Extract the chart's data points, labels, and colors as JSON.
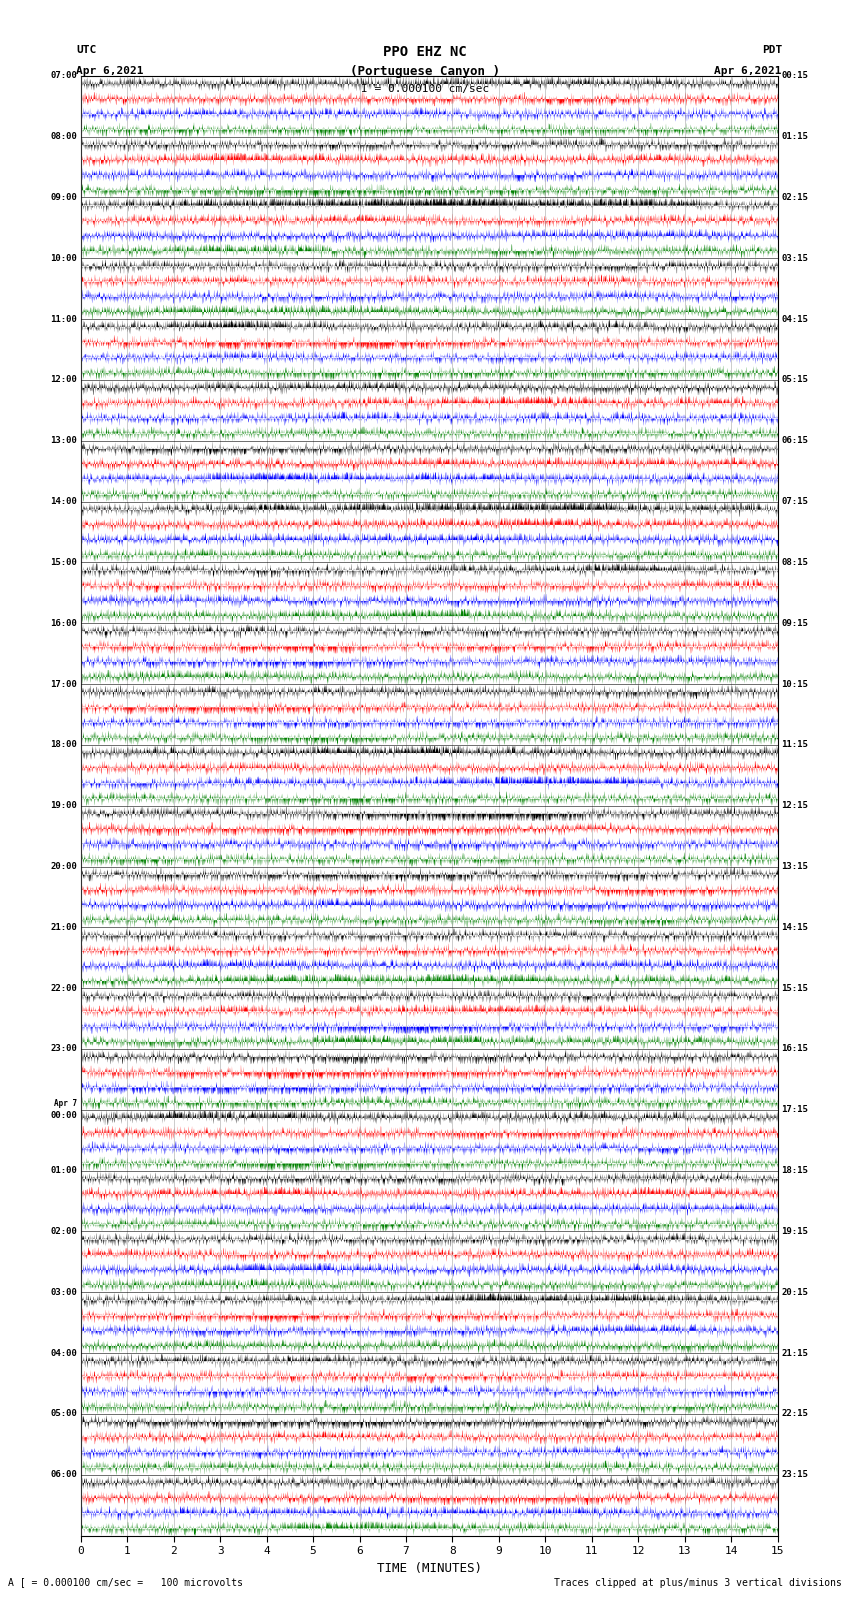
{
  "title_line1": "PPO EHZ NC",
  "title_line2": "(Portuguese Canyon )",
  "title_line3": "I = 0.000100 cm/sec",
  "left_header_line1": "UTC",
  "left_header_line2": "Apr 6,2021",
  "right_header_line1": "PDT",
  "right_header_line2": "Apr 6,2021",
  "xlabel": "TIME (MINUTES)",
  "footer_left": "A [ = 0.000100 cm/sec =   100 microvolts",
  "footer_right": "Traces clipped at plus/minus 3 vertical divisions",
  "xlim": [
    0,
    15
  ],
  "xticks": [
    0,
    1,
    2,
    3,
    4,
    5,
    6,
    7,
    8,
    9,
    10,
    11,
    12,
    13,
    14,
    15
  ],
  "colors": [
    "black",
    "red",
    "blue",
    "green"
  ],
  "utc_times": [
    "07:00",
    "08:00",
    "09:00",
    "10:00",
    "11:00",
    "12:00",
    "13:00",
    "14:00",
    "15:00",
    "16:00",
    "17:00",
    "18:00",
    "19:00",
    "20:00",
    "21:00",
    "22:00",
    "23:00",
    "Apr 7\n00:00",
    "01:00",
    "02:00",
    "03:00",
    "04:00",
    "05:00",
    "06:00"
  ],
  "pdt_times": [
    "00:15",
    "01:15",
    "02:15",
    "03:15",
    "04:15",
    "05:15",
    "06:15",
    "07:15",
    "08:15",
    "09:15",
    "10:15",
    "11:15",
    "12:15",
    "13:15",
    "14:15",
    "15:15",
    "16:15",
    "17:15",
    "18:15",
    "19:15",
    "20:15",
    "21:15",
    "22:15",
    "23:15"
  ],
  "num_hours": 24,
  "traces_per_hour": 4,
  "bg_color": "white",
  "figsize": [
    8.5,
    16.13
  ],
  "dpi": 100,
  "n_points": 5000
}
